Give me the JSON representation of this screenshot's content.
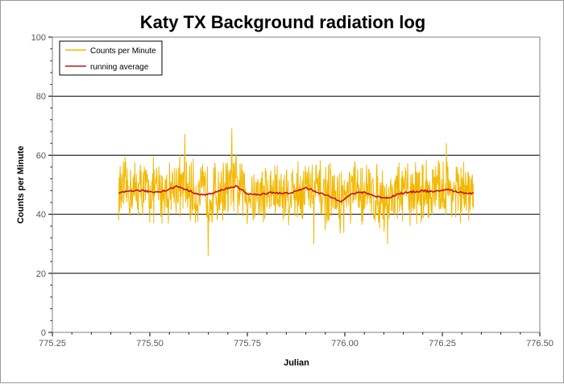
{
  "chart_data": {
    "type": "line",
    "title": "Katy TX Background radiation log",
    "xlabel": "Julian",
    "ylabel": "Counts per Minute",
    "xlim": [
      775.25,
      776.5
    ],
    "ylim": [
      0,
      100
    ],
    "x_ticks": [
      "775.25",
      "775.50",
      "775.75",
      "776.00",
      "776.25",
      "776.50"
    ],
    "y_ticks": [
      "0",
      "20",
      "40",
      "60",
      "80",
      "100"
    ],
    "grid": "horizontal major",
    "legend": "top-left",
    "colors": {
      "counts": "#f2b800",
      "average": "#c0141b"
    },
    "series": [
      {
        "name": "Counts per Minute",
        "x_range": [
          775.42,
          776.33
        ],
        "stats": {
          "typical_min": 35,
          "typical_max": 60,
          "spike_max": 69,
          "spike_min": 26
        },
        "notable_points": [
          [
            775.59,
            67
          ],
          [
            775.65,
            26
          ],
          [
            775.71,
            69
          ],
          [
            775.92,
            30
          ],
          [
            776.11,
            30
          ],
          [
            776.26,
            64
          ]
        ]
      },
      {
        "name": "running average",
        "points": [
          [
            775.42,
            47
          ],
          [
            775.45,
            48
          ],
          [
            775.48,
            48
          ],
          [
            775.51,
            47.5
          ],
          [
            775.54,
            48
          ],
          [
            775.57,
            49.5
          ],
          [
            775.6,
            48
          ],
          [
            775.63,
            46.5
          ],
          [
            775.66,
            47
          ],
          [
            775.69,
            48.5
          ],
          [
            775.72,
            49.5
          ],
          [
            775.75,
            47
          ],
          [
            775.78,
            46.5
          ],
          [
            775.81,
            47.5
          ],
          [
            775.84,
            47
          ],
          [
            775.87,
            47.5
          ],
          [
            775.9,
            49
          ],
          [
            775.93,
            47.5
          ],
          [
            775.96,
            46
          ],
          [
            775.99,
            44.5
          ],
          [
            776.02,
            47
          ],
          [
            776.05,
            47.5
          ],
          [
            776.08,
            46
          ],
          [
            776.11,
            45.5
          ],
          [
            776.14,
            47
          ],
          [
            776.17,
            47.5
          ],
          [
            776.2,
            48
          ],
          [
            776.23,
            47.5
          ],
          [
            776.26,
            48.5
          ],
          [
            776.29,
            47.5
          ],
          [
            776.33,
            47
          ]
        ]
      }
    ]
  }
}
